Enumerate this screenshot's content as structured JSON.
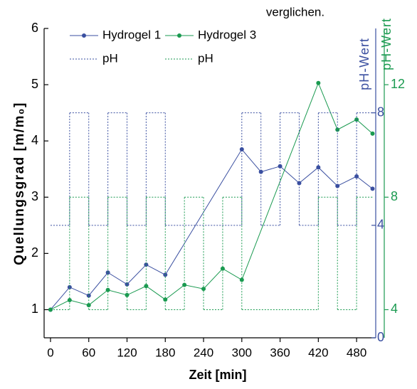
{
  "caption": "verglichen.",
  "chart_data": {
    "type": "line",
    "x_label": "Zeit [min]",
    "y_label": "Quellungsgrad [m/m₀]",
    "y2_label": "pH-Wert",
    "y3_label": "pH-Wert",
    "y2_color": "#3a4fa0",
    "y3_color": "#1a9a50",
    "xlim": [
      -10,
      510
    ],
    "xticks": [
      0,
      60,
      120,
      180,
      240,
      300,
      360,
      420,
      480
    ],
    "ylim": [
      0.5,
      6
    ],
    "yticks": [
      1,
      2,
      3,
      4,
      5,
      6
    ],
    "y2lim": [
      0,
      11
    ],
    "y2ticks": [
      0,
      4,
      8
    ],
    "y3lim": [
      3,
      14
    ],
    "y3ticks": [
      4,
      8,
      12
    ],
    "series": [
      {
        "name": "Hydrogel 1",
        "color": "#3a4fa0",
        "marker": true,
        "x": [
          0,
          30,
          60,
          90,
          120,
          150,
          180,
          300,
          330,
          360,
          390,
          420,
          450,
          480,
          505
        ],
        "values": [
          1.0,
          1.4,
          1.25,
          1.66,
          1.45,
          1.8,
          1.62,
          3.85,
          3.45,
          3.55,
          3.25,
          3.53,
          3.2,
          3.37,
          3.15
        ]
      },
      {
        "name": "Hydrogel 3",
        "color": "#1a9a50",
        "marker": true,
        "x": [
          0,
          30,
          60,
          90,
          120,
          150,
          180,
          210,
          240,
          270,
          300,
          420,
          450,
          480,
          505
        ],
        "values": [
          1.0,
          1.17,
          1.08,
          1.35,
          1.26,
          1.42,
          1.18,
          1.44,
          1.37,
          1.73,
          1.53,
          5.03,
          4.2,
          4.38,
          4.13
        ]
      },
      {
        "name": "pH",
        "color": "#3a4fa0",
        "axis": "y2",
        "drawstyle": "steps-post",
        "dashed": true,
        "x": [
          0,
          30,
          60,
          90,
          120,
          150,
          180,
          300,
          330,
          360,
          390,
          420,
          450,
          480,
          505
        ],
        "values": [
          4,
          8,
          4,
          8,
          4,
          8,
          4,
          8,
          4,
          8,
          4,
          8,
          4,
          8,
          8
        ]
      },
      {
        "name": "pH",
        "color": "#1a9a50",
        "axis": "y3",
        "drawstyle": "steps-post",
        "dashed": true,
        "x": [
          0,
          30,
          60,
          90,
          120,
          150,
          180,
          210,
          240,
          270,
          300,
          420,
          450,
          480,
          505
        ],
        "values": [
          4,
          8,
          4,
          8,
          4,
          8,
          4,
          8,
          4,
          8,
          4,
          8,
          4,
          8,
          8
        ]
      }
    ]
  }
}
